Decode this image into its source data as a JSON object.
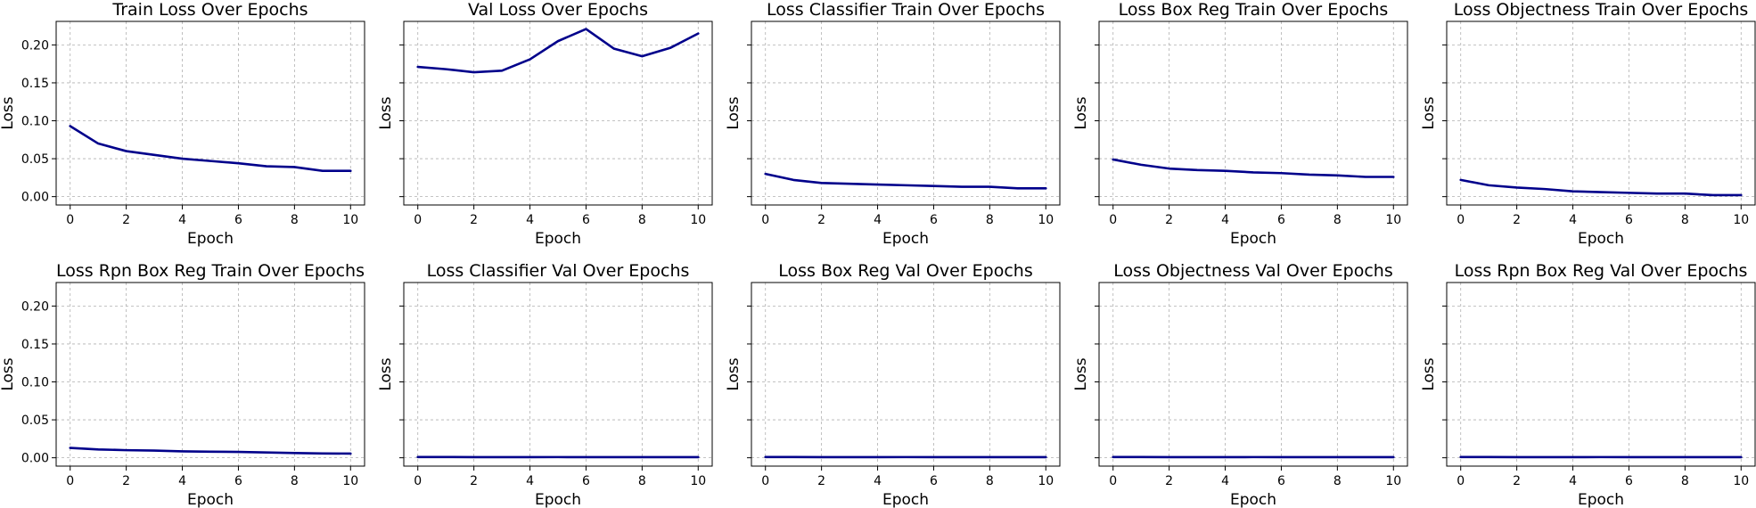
{
  "colors": {
    "line": "#00008b"
  },
  "chart_data": [
    {
      "type": "line",
      "title": "Train Loss Over Epochs",
      "xlabel": "Epoch",
      "ylabel": "Loss",
      "x": [
        0,
        1,
        2,
        3,
        4,
        5,
        6,
        7,
        8,
        9,
        10
      ],
      "y": [
        0.093,
        0.07,
        0.06,
        0.055,
        0.05,
        0.047,
        0.044,
        0.04,
        0.039,
        0.034,
        0.034
      ],
      "xlim": [
        -0.5,
        10.5
      ],
      "ylim": [
        -0.011,
        0.231
      ],
      "xticks": [
        "0",
        "2",
        "4",
        "6",
        "8",
        "10"
      ],
      "yticks": [
        "0.00",
        "0.05",
        "0.10",
        "0.15",
        "0.20"
      ],
      "grid": true
    },
    {
      "type": "line",
      "title": "Val Loss Over Epochs",
      "xlabel": "Epoch",
      "ylabel": "Loss",
      "x": [
        0,
        1,
        2,
        3,
        4,
        5,
        6,
        7,
        8,
        9,
        10
      ],
      "y": [
        0.171,
        0.168,
        0.164,
        0.166,
        0.181,
        0.205,
        0.221,
        0.195,
        0.185,
        0.196,
        0.215
      ],
      "xlim": [
        -0.5,
        10.5
      ],
      "ylim": [
        -0.011,
        0.231
      ],
      "xticks": [
        "0",
        "2",
        "4",
        "6",
        "8",
        "10"
      ],
      "yticks": [],
      "grid": true
    },
    {
      "type": "line",
      "title": "Loss Classifier Train Over Epochs",
      "xlabel": "Epoch",
      "ylabel": "Loss",
      "x": [
        0,
        1,
        2,
        3,
        4,
        5,
        6,
        7,
        8,
        9,
        10
      ],
      "y": [
        0.03,
        0.022,
        0.018,
        0.017,
        0.016,
        0.015,
        0.014,
        0.013,
        0.013,
        0.011,
        0.011
      ],
      "xlim": [
        -0.5,
        10.5
      ],
      "ylim": [
        -0.011,
        0.231
      ],
      "xticks": [
        "0",
        "2",
        "4",
        "6",
        "8",
        "10"
      ],
      "yticks": [],
      "grid": true
    },
    {
      "type": "line",
      "title": "Loss Box Reg Train Over Epochs",
      "xlabel": "Epoch",
      "ylabel": "Loss",
      "x": [
        0,
        1,
        2,
        3,
        4,
        5,
        6,
        7,
        8,
        9,
        10
      ],
      "y": [
        0.049,
        0.042,
        0.037,
        0.035,
        0.034,
        0.032,
        0.031,
        0.029,
        0.028,
        0.026,
        0.026
      ],
      "xlim": [
        -0.5,
        10.5
      ],
      "ylim": [
        -0.011,
        0.231
      ],
      "xticks": [
        "0",
        "2",
        "4",
        "6",
        "8",
        "10"
      ],
      "yticks": [],
      "grid": true
    },
    {
      "type": "line",
      "title": "Loss Objectness Train Over Epochs",
      "xlabel": "Epoch",
      "ylabel": "Loss",
      "x": [
        0,
        1,
        2,
        3,
        4,
        5,
        6,
        7,
        8,
        9,
        10
      ],
      "y": [
        0.022,
        0.015,
        0.012,
        0.01,
        0.007,
        0.006,
        0.005,
        0.004,
        0.004,
        0.002,
        0.002
      ],
      "xlim": [
        -0.5,
        10.5
      ],
      "ylim": [
        -0.011,
        0.231
      ],
      "xticks": [
        "0",
        "2",
        "4",
        "6",
        "8",
        "10"
      ],
      "yticks": [],
      "grid": true
    },
    {
      "type": "line",
      "title": "Loss Rpn Box Reg Train Over Epochs",
      "xlabel": "Epoch",
      "ylabel": "Loss",
      "x": [
        0,
        1,
        2,
        3,
        4,
        5,
        6,
        7,
        8,
        9,
        10
      ],
      "y": [
        0.013,
        0.011,
        0.01,
        0.0095,
        0.0085,
        0.008,
        0.0077,
        0.007,
        0.0062,
        0.0057,
        0.0055
      ],
      "xlim": [
        -0.5,
        10.5
      ],
      "ylim": [
        -0.011,
        0.231
      ],
      "xticks": [
        "0",
        "2",
        "4",
        "6",
        "8",
        "10"
      ],
      "yticks": [
        "0.00",
        "0.05",
        "0.10",
        "0.15",
        "0.20"
      ],
      "grid": true
    },
    {
      "type": "line",
      "title": "Loss Classifier Val Over Epochs",
      "xlabel": "Epoch",
      "ylabel": "Loss",
      "x": [
        0,
        1,
        2,
        3,
        4,
        5,
        6,
        7,
        8,
        9,
        10
      ],
      "y": [
        0.001,
        0.001,
        0.0008,
        0.0008,
        0.0008,
        0.0009,
        0.0008,
        0.0008,
        0.0008,
        0.0008,
        0.0008
      ],
      "xlim": [
        -0.5,
        10.5
      ],
      "ylim": [
        -0.011,
        0.231
      ],
      "xticks": [
        "0",
        "2",
        "4",
        "6",
        "8",
        "10"
      ],
      "yticks": [],
      "grid": true
    },
    {
      "type": "line",
      "title": "Loss Box Reg Val Over Epochs",
      "xlabel": "Epoch",
      "ylabel": "Loss",
      "x": [
        0,
        1,
        2,
        3,
        4,
        5,
        6,
        7,
        8,
        9,
        10
      ],
      "y": [
        0.001,
        0.001,
        0.0008,
        0.0008,
        0.0008,
        0.0009,
        0.0008,
        0.0008,
        0.0008,
        0.0008,
        0.0008
      ],
      "xlim": [
        -0.5,
        10.5
      ],
      "ylim": [
        -0.011,
        0.231
      ],
      "xticks": [
        "0",
        "2",
        "4",
        "6",
        "8",
        "10"
      ],
      "yticks": [],
      "grid": true
    },
    {
      "type": "line",
      "title": "Loss Objectness Val Over Epochs",
      "xlabel": "Epoch",
      "ylabel": "Loss",
      "x": [
        0,
        1,
        2,
        3,
        4,
        5,
        6,
        7,
        8,
        9,
        10
      ],
      "y": [
        0.001,
        0.001,
        0.0008,
        0.0008,
        0.0008,
        0.0009,
        0.0008,
        0.0008,
        0.0008,
        0.0008,
        0.0008
      ],
      "xlim": [
        -0.5,
        10.5
      ],
      "ylim": [
        -0.011,
        0.231
      ],
      "xticks": [
        "0",
        "2",
        "4",
        "6",
        "8",
        "10"
      ],
      "yticks": [],
      "grid": true
    },
    {
      "type": "line",
      "title": "Loss Rpn Box Reg Val Over Epochs",
      "xlabel": "Epoch",
      "ylabel": "Loss",
      "x": [
        0,
        1,
        2,
        3,
        4,
        5,
        6,
        7,
        8,
        9,
        10
      ],
      "y": [
        0.001,
        0.001,
        0.0008,
        0.0008,
        0.0008,
        0.0009,
        0.0008,
        0.0008,
        0.0008,
        0.0008,
        0.0008
      ],
      "xlim": [
        -0.5,
        10.5
      ],
      "ylim": [
        -0.011,
        0.231
      ],
      "xticks": [
        "0",
        "2",
        "4",
        "6",
        "8",
        "10"
      ],
      "yticks": [],
      "grid": true
    }
  ]
}
